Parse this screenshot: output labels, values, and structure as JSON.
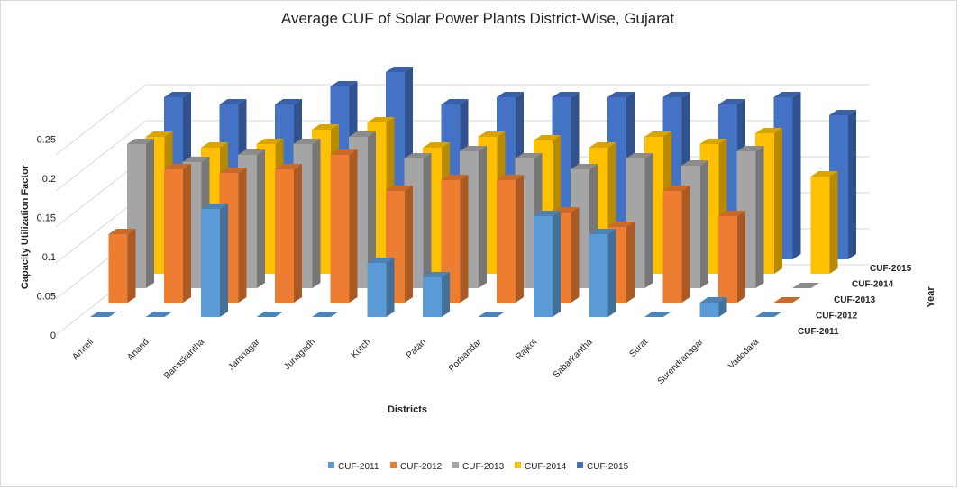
{
  "chart_data": {
    "type": "bar",
    "subtype": "3d-column",
    "title": "Average CUF of Solar Power Plants District-Wise, Gujarat",
    "xlabel": "Districts",
    "ylabel": "Capacity Utilization Factor",
    "zlabel": "Year",
    "ylim": [
      0,
      0.25
    ],
    "yticks": [
      "0",
      "0.05",
      "0.1",
      "0.15",
      "0.2",
      "0.25"
    ],
    "grid": true,
    "legend_position": "bottom",
    "categories": [
      "Amreli",
      "Anand",
      "Banaskantha",
      "Jamnagar",
      "Junagadh",
      "Kutch",
      "Patan",
      "Porbandar",
      "Rajkot",
      "Sabarkantha",
      "Surat",
      "Surendranagar",
      "Vadodara"
    ],
    "series": [
      {
        "name": "CUF-2011",
        "color": "#5b9bd5",
        "values": [
          0,
          0,
          0.15,
          0,
          0,
          0.075,
          0.055,
          0,
          0.14,
          0.115,
          0,
          0.02,
          0
        ]
      },
      {
        "name": "CUF-2012",
        "color": "#ed7d31",
        "values": [
          0.095,
          0.185,
          0.18,
          0.185,
          0.205,
          0.155,
          0.17,
          0.17,
          0.125,
          0.105,
          0.155,
          0.12,
          0
        ]
      },
      {
        "name": "CUF-2013",
        "color": "#a5a5a5",
        "values": [
          0.2,
          0.175,
          0.185,
          0.2,
          0.21,
          0.18,
          0.19,
          0.18,
          0.165,
          0.18,
          0.17,
          0.19,
          0
        ]
      },
      {
        "name": "CUF-2014",
        "color": "#ffc000",
        "values": [
          0.19,
          0.175,
          0.18,
          0.2,
          0.21,
          0.175,
          0.19,
          0.185,
          0.175,
          0.19,
          0.18,
          0.195,
          0.135
        ]
      },
      {
        "name": "CUF-2015",
        "color": "#4472c4",
        "values": [
          0.225,
          0.215,
          0.215,
          0.24,
          0.26,
          0.215,
          0.225,
          0.225,
          0.225,
          0.225,
          0.215,
          0.225,
          0.2
        ]
      }
    ]
  }
}
